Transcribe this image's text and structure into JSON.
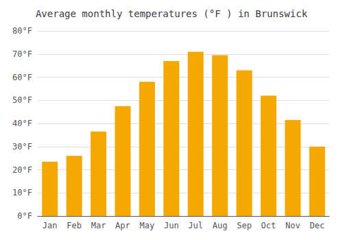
{
  "chart_data": {
    "type": "bar",
    "title": "Average monthly temperatures (°F ) in Brunswick",
    "categories": [
      "Jan",
      "Feb",
      "Mar",
      "Apr",
      "May",
      "Jun",
      "Jul",
      "Aug",
      "Sep",
      "Oct",
      "Nov",
      "Dec"
    ],
    "values": [
      23.5,
      26.0,
      36.5,
      47.5,
      58.0,
      67.0,
      71.0,
      69.5,
      63.0,
      52.0,
      41.5,
      30.0
    ],
    "color": "#F5A800",
    "ylim": [
      0,
      80
    ],
    "yticks": [
      {
        "value": 0,
        "label": "0°F"
      },
      {
        "value": 10,
        "label": "10°F"
      },
      {
        "value": 20,
        "label": "20°F"
      },
      {
        "value": 30,
        "label": "30°F"
      },
      {
        "value": 40,
        "label": "40°F"
      },
      {
        "value": 50,
        "label": "50°F"
      },
      {
        "value": 60,
        "label": "60°F"
      },
      {
        "value": 70,
        "label": "70°F"
      },
      {
        "value": 80,
        "label": "80°F"
      }
    ],
    "grid": true
  }
}
